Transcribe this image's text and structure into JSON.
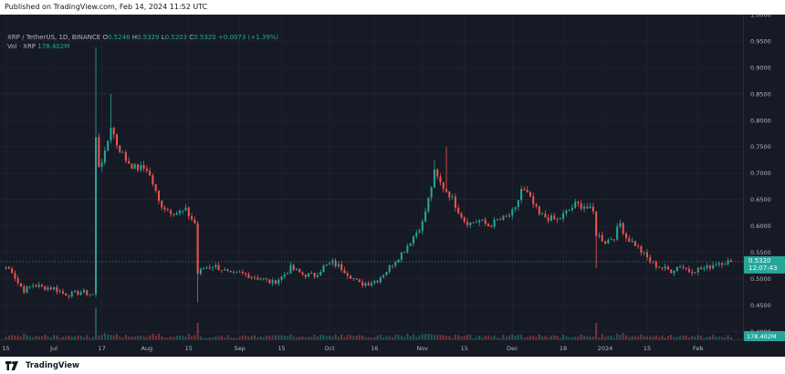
{
  "header": {
    "published": "Published on TradingView.com, Feb 14, 2024 11:52 UTC"
  },
  "footer": {
    "brand": "TradingView"
  },
  "legend": {
    "symbol": "XRP / TetherUS, 1D, BINANCE",
    "o_label": "O",
    "o": "0.5246",
    "h_label": "H",
    "h": "0.5329",
    "l_label": "L",
    "l": "0.5203",
    "c_label": "C",
    "c": "0.5320",
    "change": "+0.0073 (+1.39%)",
    "vol_label": "Vol · XRP",
    "vol": "178.402M"
  },
  "price_tag": {
    "price": "0.5320",
    "countdown": "12:07:43"
  },
  "volume_tag": "178.402M",
  "colors": {
    "up": "#26a69a",
    "down": "#ef5350",
    "background": "#161a25",
    "grid": "#242833",
    "axis_text": "#b2b5be"
  },
  "chart_data": {
    "type": "candlestick",
    "y_axis_ticks": [
      "0.4000",
      "0.4500",
      "0.5000",
      "0.5500",
      "0.6000",
      "0.6500",
      "0.7000",
      "0.7500",
      "0.8000",
      "0.8500",
      "0.9000",
      "0.9500",
      "1.0000"
    ],
    "y_tick_values": [
      0.4,
      0.45,
      0.5,
      0.55,
      0.6,
      0.65,
      0.7,
      0.75,
      0.8,
      0.85,
      0.9,
      0.95,
      1.0
    ],
    "ylim": [
      0.385,
      1.0
    ],
    "x_axis_ticks": [
      {
        "label": "15",
        "day": 0
      },
      {
        "label": "Jul",
        "day": 16
      },
      {
        "label": "17",
        "day": 32
      },
      {
        "label": "Aug",
        "day": 47
      },
      {
        "label": "15",
        "day": 61
      },
      {
        "label": "Sep",
        "day": 78
      },
      {
        "label": "15",
        "day": 92
      },
      {
        "label": "Oct",
        "day": 108
      },
      {
        "label": "16",
        "day": 123
      },
      {
        "label": "Nov",
        "day": 139
      },
      {
        "label": "15",
        "day": 153
      },
      {
        "label": "Dec",
        "day": 169
      },
      {
        "label": "18",
        "day": 186
      },
      {
        "label": "2024",
        "day": 200
      },
      {
        "label": "15",
        "day": 214
      },
      {
        "label": "Feb",
        "day": 231
      }
    ],
    "xlim_days": [
      -2,
      246
    ],
    "price_anchors": [
      [
        0,
        0.522
      ],
      [
        2,
        0.515
      ],
      [
        4,
        0.492
      ],
      [
        6,
        0.478
      ],
      [
        9,
        0.488
      ],
      [
        12,
        0.484
      ],
      [
        16,
        0.482
      ],
      [
        19,
        0.472
      ],
      [
        22,
        0.47
      ],
      [
        25,
        0.475
      ],
      [
        28,
        0.471
      ],
      [
        29,
        0.47
      ],
      [
        30,
        0.765
      ],
      [
        31,
        0.715
      ],
      [
        33,
        0.735
      ],
      [
        35,
        0.79
      ],
      [
        37,
        0.755
      ],
      [
        40,
        0.725
      ],
      [
        43,
        0.71
      ],
      [
        47,
        0.708
      ],
      [
        49,
        0.68
      ],
      [
        51,
        0.645
      ],
      [
        54,
        0.63
      ],
      [
        57,
        0.625
      ],
      [
        60,
        0.628
      ],
      [
        63,
        0.605
      ],
      [
        64,
        0.51
      ],
      [
        66,
        0.52
      ],
      [
        69,
        0.525
      ],
      [
        72,
        0.518
      ],
      [
        75,
        0.507
      ],
      [
        78,
        0.51
      ],
      [
        82,
        0.505
      ],
      [
        86,
        0.498
      ],
      [
        89,
        0.492
      ],
      [
        92,
        0.503
      ],
      [
        95,
        0.52
      ],
      [
        99,
        0.508
      ],
      [
        103,
        0.506
      ],
      [
        106,
        0.522
      ],
      [
        109,
        0.53
      ],
      [
        112,
        0.52
      ],
      [
        115,
        0.505
      ],
      [
        118,
        0.49
      ],
      [
        121,
        0.492
      ],
      [
        124,
        0.498
      ],
      [
        127,
        0.515
      ],
      [
        130,
        0.535
      ],
      [
        133,
        0.555
      ],
      [
        136,
        0.58
      ],
      [
        139,
        0.605
      ],
      [
        141,
        0.65
      ],
      [
        143,
        0.7
      ],
      [
        145,
        0.68
      ],
      [
        148,
        0.66
      ],
      [
        150,
        0.64
      ],
      [
        153,
        0.61
      ],
      [
        155,
        0.605
      ],
      [
        158,
        0.61
      ],
      [
        161,
        0.6
      ],
      [
        164,
        0.61
      ],
      [
        167,
        0.615
      ],
      [
        170,
        0.63
      ],
      [
        172,
        0.67
      ],
      [
        174,
        0.66
      ],
      [
        176,
        0.64
      ],
      [
        178,
        0.62
      ],
      [
        181,
        0.615
      ],
      [
        184,
        0.61
      ],
      [
        187,
        0.625
      ],
      [
        190,
        0.64
      ],
      [
        193,
        0.638
      ],
      [
        196,
        0.625
      ],
      [
        197,
        0.585
      ],
      [
        200,
        0.57
      ],
      [
        203,
        0.58
      ],
      [
        205,
        0.605
      ],
      [
        207,
        0.578
      ],
      [
        210,
        0.565
      ],
      [
        213,
        0.545
      ],
      [
        216,
        0.528
      ],
      [
        219,
        0.52
      ],
      [
        222,
        0.515
      ],
      [
        225,
        0.525
      ],
      [
        228,
        0.515
      ],
      [
        231,
        0.518
      ],
      [
        234,
        0.52
      ],
      [
        237,
        0.53
      ],
      [
        240,
        0.532
      ],
      [
        242,
        0.532
      ]
    ],
    "spikes": [
      {
        "day": 30,
        "high": 0.938
      },
      {
        "day": 35,
        "high": 0.85
      },
      {
        "day": 64,
        "low": 0.455
      },
      {
        "day": 143,
        "high": 0.725
      },
      {
        "day": 147,
        "high": 0.75
      },
      {
        "day": 197,
        "low": 0.52
      }
    ],
    "volume_spikes": [
      {
        "day": 30,
        "ratio": 0.58
      },
      {
        "day": 64,
        "ratio": 0.3
      },
      {
        "day": 197,
        "ratio": 0.3
      }
    ],
    "last": {
      "close": 0.532
    }
  }
}
